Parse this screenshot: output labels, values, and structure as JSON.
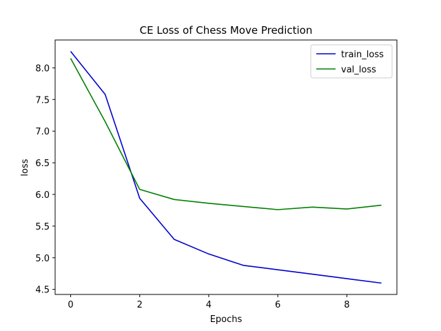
{
  "chart_data": {
    "type": "line",
    "title": "CE Loss of Chess Move Prediction",
    "xlabel": "Epochs",
    "ylabel": "loss",
    "x": [
      0,
      1,
      2,
      3,
      4,
      5,
      6,
      7,
      8,
      9
    ],
    "xticks": [
      0,
      2,
      4,
      6,
      8
    ],
    "yticks": [
      4.5,
      5.0,
      5.5,
      6.0,
      6.5,
      7.0,
      7.5,
      8.0
    ],
    "xlim": [
      -0.45,
      9.45
    ],
    "ylim": [
      4.42,
      8.44
    ],
    "grid": false,
    "legend_position": "top-right",
    "series": [
      {
        "name": "train_loss",
        "color": "#0000cc",
        "values": [
          8.26,
          7.58,
          5.94,
          5.29,
          5.06,
          4.88,
          4.81,
          4.74,
          4.67,
          4.6
        ]
      },
      {
        "name": "val_loss",
        "color": "#007f00",
        "values": [
          8.15,
          7.15,
          6.08,
          5.92,
          5.86,
          5.81,
          5.76,
          5.8,
          5.77,
          5.83
        ]
      }
    ]
  }
}
